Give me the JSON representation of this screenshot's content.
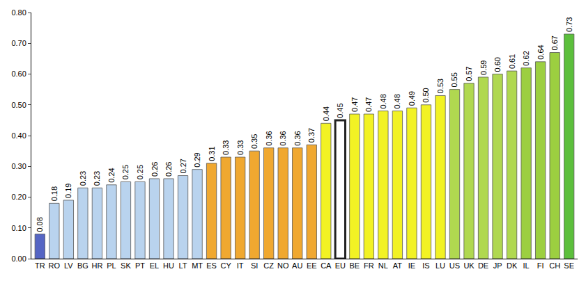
{
  "chart_data": {
    "type": "bar",
    "categories": [
      "TR",
      "RO",
      "LV",
      "BG",
      "HR",
      "PL",
      "SK",
      "PT",
      "EL",
      "HU",
      "LT",
      "MT",
      "ES",
      "CY",
      "IT",
      "SI",
      "CZ",
      "NO",
      "AU",
      "EE",
      "CA",
      "EU",
      "BE",
      "FR",
      "NL",
      "AT",
      "IE",
      "IS",
      "LU",
      "US",
      "UK",
      "DE",
      "JP",
      "DK",
      "IL",
      "FI",
      "CH",
      "SE"
    ],
    "values": [
      0.08,
      0.18,
      0.19,
      0.23,
      0.23,
      0.24,
      0.25,
      0.25,
      0.26,
      0.26,
      0.27,
      0.29,
      0.31,
      0.33,
      0.33,
      0.35,
      0.36,
      0.36,
      0.36,
      0.37,
      0.44,
      0.45,
      0.47,
      0.47,
      0.48,
      0.48,
      0.49,
      0.5,
      0.53,
      0.55,
      0.57,
      0.59,
      0.6,
      0.61,
      0.62,
      0.64,
      0.67,
      0.73
    ],
    "value_labels": [
      "0.08",
      "0.18",
      "0.19",
      "0.23",
      "0.23",
      "0.24",
      "0.25",
      "0.25",
      "0.26",
      "0.26",
      "0.27",
      "0.29",
      "0.31",
      "0.33",
      "0.33",
      "0.35",
      "0.36",
      "0.36",
      "0.36",
      "0.37",
      "0.44",
      "0.45",
      "0.47",
      "0.47",
      "0.48",
      "0.48",
      "0.49",
      "0.50",
      "0.53",
      "0.55",
      "0.57",
      "0.59",
      "0.60",
      "0.61",
      "0.62",
      "0.64",
      "0.67",
      "0.73"
    ],
    "colors": [
      "#5565c4",
      "#b9d3ee",
      "#b9d3ee",
      "#b9d3ee",
      "#b9d3ee",
      "#b9d3ee",
      "#b9d3ee",
      "#b9d3ee",
      "#b9d3ee",
      "#b9d3ee",
      "#b9d3ee",
      "#b9d3ee",
      "#f0a830",
      "#f0a830",
      "#f0a830",
      "#f0a830",
      "#f0a830",
      "#f0a830",
      "#f0a830",
      "#f0a830",
      "#f2f224",
      "#ffffff",
      "#f2f224",
      "#f2f224",
      "#f2f224",
      "#f2f224",
      "#f2f224",
      "#f2f224",
      "#f2f224",
      "#b0d850",
      "#b0d850",
      "#b0d850",
      "#b0d850",
      "#b0d850",
      "#9ccf40",
      "#9ccf40",
      "#9ccf40",
      "#5cbf3c"
    ],
    "ylim": [
      0,
      0.8
    ],
    "yticks": [
      {
        "value": 0,
        "label": "0.00"
      },
      {
        "value": 0.1,
        "label": "0.10"
      },
      {
        "value": 0.2,
        "label": "0.20"
      },
      {
        "value": 0.3,
        "label": "0.30"
      },
      {
        "value": 0.4,
        "label": "0.40"
      },
      {
        "value": 0.5,
        "label": "0.50"
      },
      {
        "value": 0.6,
        "label": "0.60"
      },
      {
        "value": 0.7,
        "label": "0.70"
      },
      {
        "value": 0.8,
        "label": "0.80"
      }
    ],
    "grid": false,
    "data_labels": true
  }
}
